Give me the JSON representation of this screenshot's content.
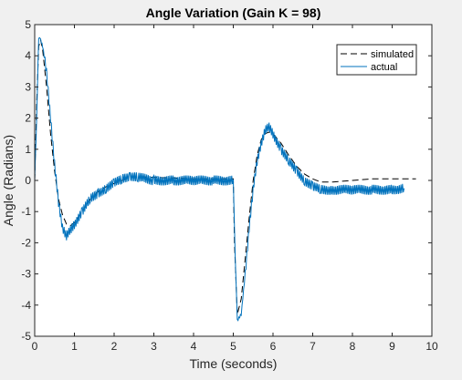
{
  "chart_data": {
    "type": "line",
    "title": "Angle Variation (Gain K = 98)",
    "xlabel": "Time (seconds)",
    "ylabel": "Angle (Radians)",
    "xlim": [
      0,
      10
    ],
    "ylim": [
      -5,
      5
    ],
    "xticks": [
      "0",
      "1",
      "2",
      "3",
      "4",
      "5",
      "6",
      "7",
      "8",
      "9",
      "10"
    ],
    "yticks": [
      "-5",
      "-4",
      "-3",
      "-2",
      "-1",
      "0",
      "1",
      "2",
      "3",
      "4",
      "5"
    ],
    "grid": false,
    "legend_position": "top-right",
    "colors": {
      "simulated": "#000000",
      "actual": "#0072bd"
    },
    "series": [
      {
        "name": "simulated",
        "style": "dashed",
        "x": [
          0,
          0.05,
          0.1,
          0.15,
          0.2,
          0.3,
          0.4,
          0.5,
          0.6,
          0.7,
          0.8,
          0.9,
          1.0,
          1.2,
          1.4,
          1.6,
          1.8,
          2.0,
          2.2,
          2.4,
          2.6,
          3.0,
          3.5,
          4.0,
          4.5,
          5.0,
          5.03,
          5.1,
          5.2,
          5.3,
          5.4,
          5.5,
          5.6,
          5.7,
          5.8,
          5.9,
          6.0,
          6.2,
          6.4,
          6.6,
          6.8,
          7.0,
          7.2,
          7.5,
          8.0,
          8.5,
          9.0,
          9.5,
          9.6
        ],
        "y": [
          0,
          2.5,
          4.3,
          4.5,
          4.2,
          3.0,
          1.5,
          0.3,
          -0.6,
          -1.1,
          -1.4,
          -1.45,
          -1.35,
          -1.0,
          -0.6,
          -0.35,
          -0.2,
          -0.1,
          0.0,
          0.1,
          0.12,
          0.1,
          0.08,
          0.05,
          0.05,
          0.05,
          -2.0,
          -4.3,
          -3.8,
          -2.5,
          -1.2,
          0.0,
          0.8,
          1.3,
          1.5,
          1.55,
          1.5,
          1.2,
          0.8,
          0.45,
          0.2,
          0.05,
          -0.05,
          -0.05,
          0.0,
          0.05,
          0.05,
          0.05,
          0.05
        ]
      },
      {
        "name": "actual",
        "style": "solid",
        "x": [
          0,
          0.05,
          0.1,
          0.15,
          0.2,
          0.3,
          0.4,
          0.5,
          0.6,
          0.7,
          0.8,
          0.9,
          1.0,
          1.2,
          1.4,
          1.6,
          1.8,
          2.0,
          2.2,
          2.4,
          2.6,
          3.0,
          3.5,
          4.0,
          4.5,
          5.0,
          5.05,
          5.1,
          5.2,
          5.3,
          5.4,
          5.5,
          5.6,
          5.7,
          5.8,
          5.9,
          6.0,
          6.2,
          6.4,
          6.6,
          6.8,
          7.0,
          7.2,
          7.5,
          8.0,
          8.5,
          9.0,
          9.3
        ],
        "y": [
          0,
          2.0,
          4.6,
          4.5,
          4.3,
          3.5,
          2.0,
          0.5,
          -0.7,
          -1.5,
          -1.8,
          -1.6,
          -1.4,
          -1.0,
          -0.6,
          -0.4,
          -0.25,
          -0.1,
          0.05,
          0.15,
          0.1,
          0.0,
          0.0,
          0.0,
          0.0,
          0.0,
          -2.5,
          -4.5,
          -4.3,
          -3.0,
          -1.5,
          -0.3,
          0.6,
          1.2,
          1.6,
          1.7,
          1.5,
          1.0,
          0.6,
          0.3,
          0.0,
          -0.2,
          -0.3,
          -0.3,
          -0.3,
          -0.3,
          -0.3,
          -0.25
        ]
      }
    ]
  }
}
